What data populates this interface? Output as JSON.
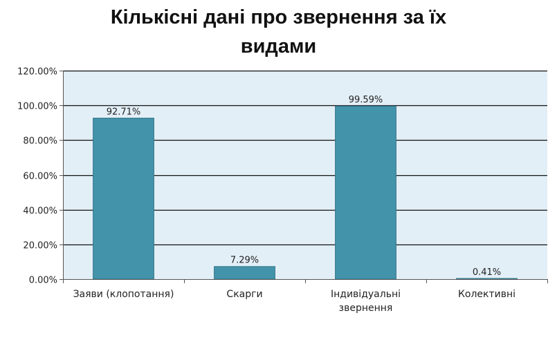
{
  "chart_data": {
    "type": "bar",
    "title_lines": [
      "Кількісні дані про звернення за їх",
      "видами"
    ],
    "categories": [
      [
        "Заяви (клопотання)"
      ],
      [
        "Скарги"
      ],
      [
        "Індивідуальні",
        "звернення"
      ],
      [
        "Колективні"
      ]
    ],
    "values": [
      92.71,
      7.29,
      99.59,
      0.41
    ],
    "data_labels": [
      "92.71%",
      "7.29%",
      "99.59%",
      "0.41%"
    ],
    "y_ticks": [
      0,
      20,
      40,
      60,
      80,
      100,
      120
    ],
    "y_tick_labels": [
      "0.00%",
      "20.00%",
      "40.00%",
      "60.00%",
      "80.00%",
      "100.00%",
      "120.00%"
    ],
    "ylim": [
      0,
      120
    ],
    "grid": true,
    "colors": {
      "bar": "#4393aa",
      "bar_edge": "#2f6f82",
      "plot_bg": "#e3eff7",
      "grid": "#111111",
      "axis": "#555555"
    }
  }
}
